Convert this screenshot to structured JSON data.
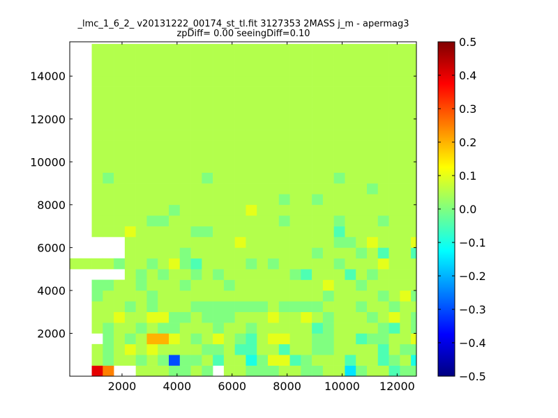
{
  "chart_data": {
    "type": "heatmap",
    "title": "_lmc_1_6_2_ v20131222_00174_st_tl.fit 3127353 2MASS j_m - apermag3",
    "subtitle": "zpDiff= 0.00 seeingDiff=0.10",
    "xlabel": "",
    "ylabel": "",
    "xlim": [
      100,
      12700
    ],
    "ylim": [
      0,
      15600
    ],
    "xticks": [
      2000,
      4000,
      6000,
      8000,
      10000,
      12000
    ],
    "yticks": [
      2000,
      4000,
      6000,
      8000,
      10000,
      12000,
      14000
    ],
    "grid": false,
    "colormap": "jet",
    "colorbar": {
      "min": -0.5,
      "max": 0.5,
      "ticks": [
        0.5,
        0.4,
        0.3,
        0.2,
        0.1,
        0.0,
        -0.1,
        -0.2,
        -0.3,
        -0.4,
        -0.5
      ],
      "tick_labels": [
        "0.5",
        "0.4",
        "0.3",
        "0.2",
        "0.1",
        "0.0",
        "−0.1",
        "−0.2",
        "−0.3",
        "−0.4",
        "−0.5"
      ]
    },
    "bin_size": [
      400,
      500
    ],
    "x_bin_start": 100,
    "y_bin_start": 0,
    "rows_bottom_to_top": [
      "__PN _JJJIIJI_JJIIIJJIIJJFIJJHIIJJJGIJIJ",
      "__JIJJIJICIIJHJJGIKKHIJJJHJJHIJGJJIJJN",
      "__JIJKJKJJJJIIJHHJJHJJIIJJJJHJIIJJIIIJ",
      "UUUIJIJMMKJIJKJIHJKKJJIIJJHIIJJKBIJIJJ",
      "__JIJJIJIIJJJIJJIJJJJJHIJJJJIHJIIKJDJJ",
      "__JJKJJKKIIJIIIJJJKJJKJIJJJIJKJIJKIKKH",
      "__JJJIJIJJJIIIIIIIJIIIIJJJIJJIJJIJKKKJ",
      "__IJJJJIJJJJJJJJJJJJJJJIJJJJIJKIJJJ_JJ",
      "__IIJJIJJJIJJJIJJJJJJJJKJJIJJJJJJIIJJJ",
      "_____JIJIJJIJIJJJJJJIHJJJHJIJJJJIJKJJJ",
      "JJJJIJJIJKIHJJJJIJIJJJJJIJJJKJJJIJJJJJ",
      "_____JJJJJIJJJJJJJJJJJIJJJIJHJJHJJIJJJ",
      "_____JJJJJJJJJJKJJJJJJJJIIJKJJJKJJJI_J",
      "__JJJKJJJJJIIJJJJJJJJJJJHJJJJJJJJJJJJJ",
      "__JJJJJIIJJJJJJJJJJIJJJJIJJJIJJJJJJJJJ",
      "__JJJJJJJIJJJJJJKJJJJJJJJJJJJJJJJJJJJJ",
      "__JJJJJJJJJJJJJJJJJIJJIJJJJJJJJJJJJJJJ",
      "__JJJJJJJJJJJJJJJJJJJJJJJJJIJJJJJJJJJJ",
      "__JIJJJJJJJJIJJJJJJJJJJJIJJJJJJJJJJJJJ",
      "__JJJJJJJJJJJJJJJJJJJJJJJJJJJJJJJJJJJJ",
      "__JJJJJJJJJJJJJJJJJJJJJJJJJJJJJJJJJ_JJ",
      "__JJJJJJJJJJJJJJJJJJJJJJJJJJJJJJJJJJJJ",
      "__JJJJJJJJJJJJJJJJJJJJJJJJJJJJJJJJJJJJ",
      "__JJJJJJJJJJJJJJJJJJJJJJJJJJJJJJJJJJJJ",
      "__JJJJJJJJJJJJJJJJJJJJJJJJJJJJJJJJJJJJ",
      "__JJJJJJJJJJJJJJJJJJJJJJJJJJJJJJJJJJJJ",
      "__JJJJJJJJJJJJJJJJJJJJJJJJJJJJJJJJJJJJ",
      "__JJJJJJJJJJJJJJJJJJJJJJJJJJJJJJJJJJJJ",
      "__JJJJJJJJJJJJJJJJJJJJJJJJJJJJJJJJJJJJ",
      "__JJJJJJJJJJJJJJJJJJJJJJJJJJJJJJJJJJJJ",
      "__JJJJJJJJJJJJJJJJJJJJJJJJJJJJJJJJJJJJ"
    ],
    "cell_levels": {
      "_": null,
      "A": -0.5,
      "B": -0.45,
      "C": -0.3,
      "D": -0.25,
      "E": -0.2,
      "F": -0.15,
      "G": -0.1,
      "H": -0.05,
      "I": 0.0,
      "J": 0.05,
      "K": 0.1,
      "L": 0.15,
      "M": 0.2,
      "N": 0.25,
      "O": 0.3,
      "P": 0.4
    },
    "empty_color": "#ffffff"
  }
}
